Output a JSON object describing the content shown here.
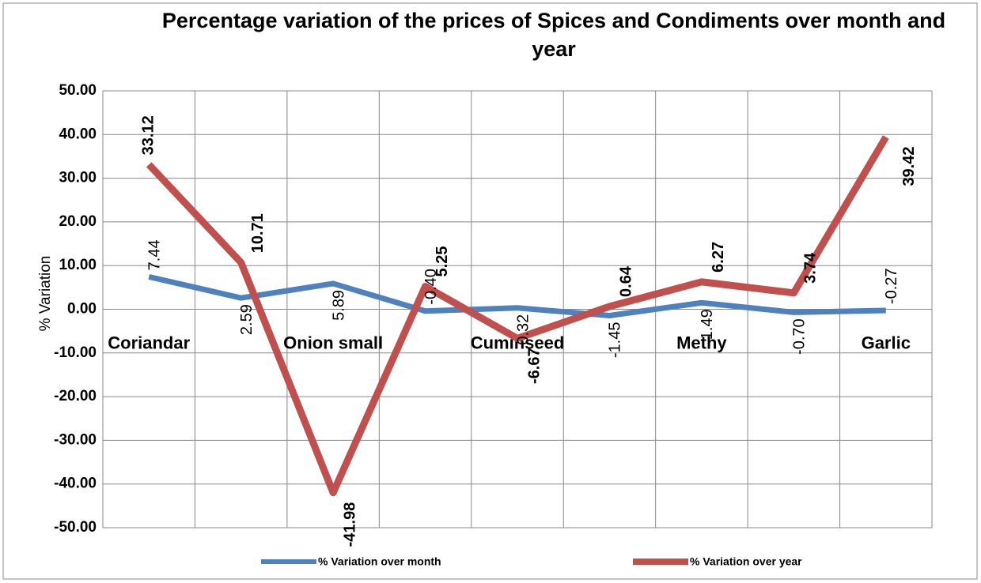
{
  "chart_data": {
    "type": "line",
    "title": "Percentage variation of the prices of Spices and Condiments over month and year",
    "y_label": "% Variation",
    "categories": [
      "Coriandar",
      null,
      "Onion small",
      null,
      "Cuminseed",
      null,
      "Methy",
      null,
      "Garlic"
    ],
    "series": [
      {
        "name": "% Variation over month",
        "color": "#4f81bd",
        "values": [
          7.44,
          2.59,
          5.89,
          -0.4,
          0.32,
          -1.45,
          1.49,
          -0.7,
          -0.27
        ],
        "value_labels": [
          "7.44",
          "2.59",
          "5.89",
          "-0.40",
          "0.32",
          "-1.45",
          "1.49",
          "-0.70",
          "-0.27"
        ]
      },
      {
        "name": "% Variation over year",
        "color": "#c0504d",
        "values": [
          33.12,
          10.71,
          -41.98,
          5.25,
          -6.67,
          0.64,
          6.27,
          3.74,
          39.42
        ],
        "value_labels": [
          "33.12",
          "10.71",
          "-41.98",
          "5.25",
          "-6.67",
          "0.64",
          "6.27",
          "3.74",
          "39.42"
        ]
      }
    ],
    "ylim": [
      -50,
      50
    ],
    "yticks": [
      {
        "value": -50,
        "label": "-50.00"
      },
      {
        "value": -40,
        "label": "-40.00"
      },
      {
        "value": -30,
        "label": "-30.00"
      },
      {
        "value": -20,
        "label": "-20.00"
      },
      {
        "value": -10,
        "label": "-10.00"
      },
      {
        "value": 0,
        "label": "0.00"
      },
      {
        "value": 10,
        "label": "10.00"
      },
      {
        "value": 20,
        "label": "20.00"
      },
      {
        "value": 30,
        "label": "30.00"
      },
      {
        "value": 40,
        "label": "40.00"
      },
      {
        "value": 50,
        "label": "50.00"
      }
    ],
    "grid": true,
    "legend": "bottom"
  }
}
